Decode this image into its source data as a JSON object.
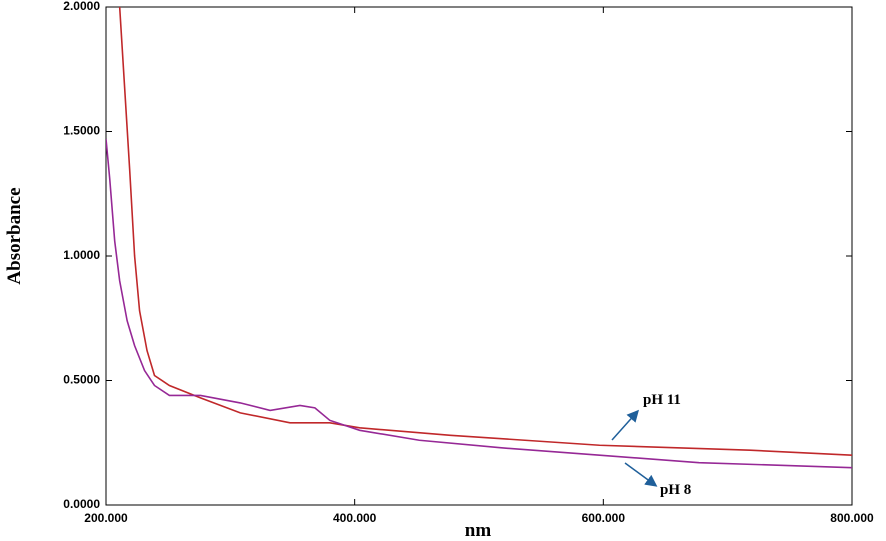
{
  "chart_data": {
    "type": "line",
    "x_label": "nm",
    "y_label": "Absorbance",
    "xlim": [
      200,
      800
    ],
    "ylim": [
      0,
      2
    ],
    "xticks": [
      {
        "value": 200,
        "label": "200.000"
      },
      {
        "value": 400,
        "label": "400.000"
      },
      {
        "value": 600,
        "label": "600.000"
      },
      {
        "value": 800,
        "label": "800.000"
      }
    ],
    "yticks": [
      {
        "value": 0,
        "label": "0.0000"
      },
      {
        "value": 0.5,
        "label": "0.5000"
      },
      {
        "value": 1,
        "label": "1.0000"
      },
      {
        "value": 1.5,
        "label": "1.5000"
      },
      {
        "value": 2,
        "label": "2.0000"
      }
    ],
    "series": [
      {
        "name": "pH 11",
        "color": "#c0282a",
        "x": [
          211,
          219,
          223,
          227,
          233,
          239,
          251,
          276,
          308,
          348,
          380,
          404,
          477,
          597,
          718,
          800
        ],
        "values": [
          2.0,
          1.35,
          1.0,
          0.78,
          0.62,
          0.52,
          0.48,
          0.43,
          0.37,
          0.33,
          0.33,
          0.31,
          0.28,
          0.24,
          0.22,
          0.2
        ]
      },
      {
        "name": "pH 8",
        "color": "#962896",
        "x": [
          200,
          203,
          207,
          211,
          217,
          223,
          231,
          239,
          251,
          276,
          308,
          332,
          356,
          368,
          380,
          404,
          452,
          517,
          597,
          677,
          800
        ],
        "values": [
          1.47,
          1.31,
          1.06,
          0.9,
          0.74,
          0.64,
          0.54,
          0.48,
          0.44,
          0.44,
          0.41,
          0.38,
          0.4,
          0.39,
          0.34,
          0.3,
          0.26,
          0.23,
          0.2,
          0.17,
          0.15
        ]
      }
    ]
  }
}
